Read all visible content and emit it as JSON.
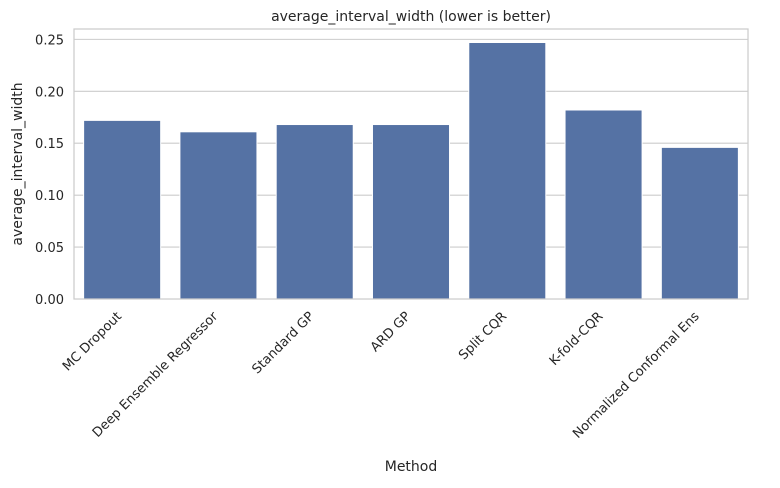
{
  "chart_data": {
    "type": "bar",
    "title": "average_interval_width (lower is better)",
    "xlabel": "Method",
    "ylabel": "average_interval_width",
    "categories": [
      "MC Dropout",
      "Deep Ensemble Regressor",
      "Standard GP",
      "ARD GP",
      "Split CQR",
      "K-fold-CQR",
      "Normalized Conformal Ens"
    ],
    "values": [
      0.172,
      0.161,
      0.168,
      0.168,
      0.247,
      0.182,
      0.146
    ],
    "ylim": [
      0,
      0.26
    ],
    "yticks": [
      0.0,
      0.05,
      0.1,
      0.15,
      0.2,
      0.25
    ],
    "ytick_labels": [
      "0.00",
      "0.05",
      "0.10",
      "0.15",
      "0.20",
      "0.25"
    ],
    "grid": "horizontal",
    "legend": "none",
    "bar_color": "#5572a4",
    "grid_color": "#cccccc"
  }
}
